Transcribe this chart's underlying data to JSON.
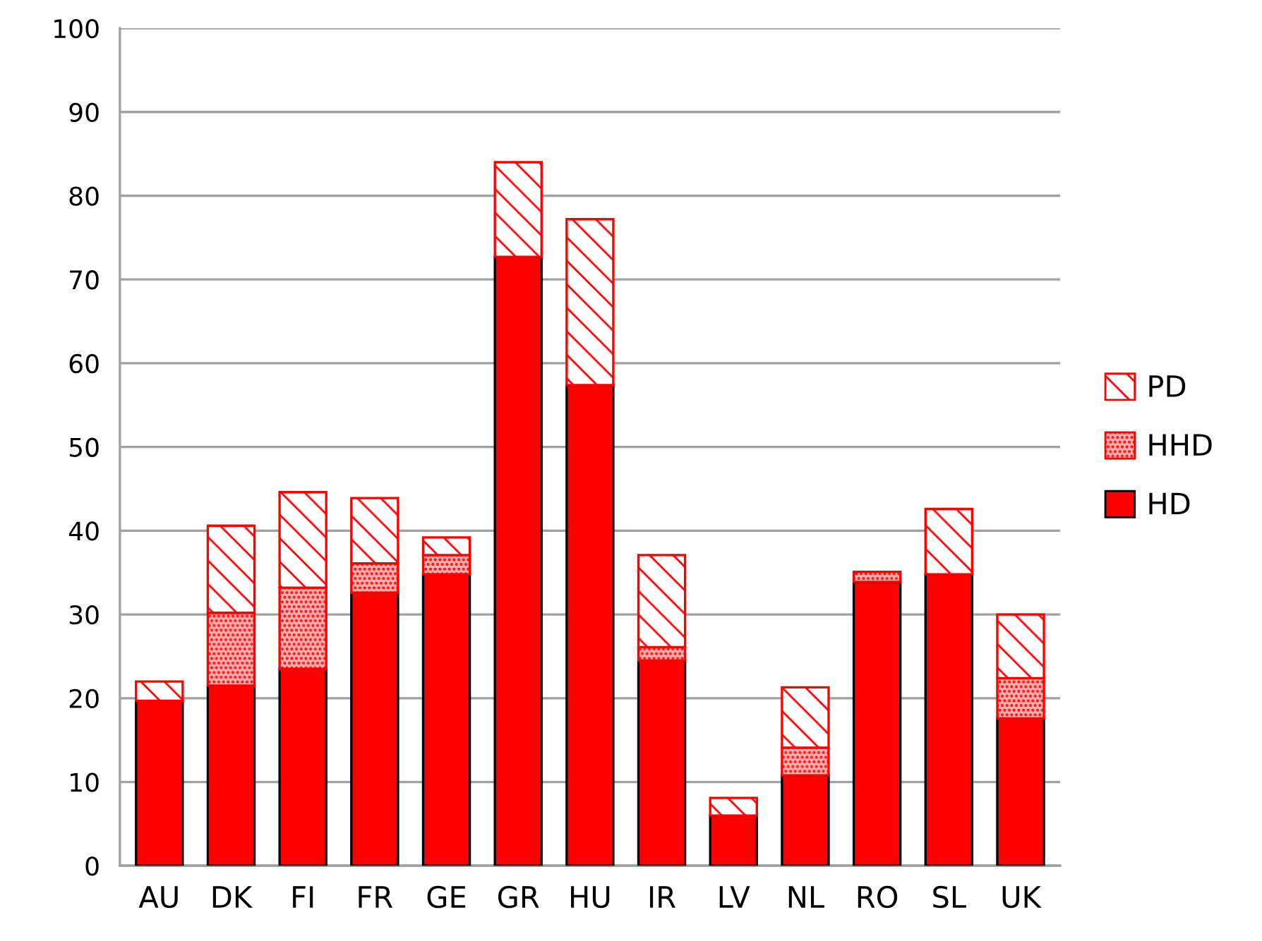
{
  "chart_data": {
    "type": "bar",
    "stacked": true,
    "categories": [
      "AU",
      "DK",
      "FI",
      "FR",
      "GE",
      "GR",
      "HU",
      "IR",
      "LV",
      "NL",
      "RO",
      "SL",
      "UK"
    ],
    "series": [
      {
        "name": "HD",
        "color": "#ff0000",
        "values": [
          19.7,
          21.5,
          23.5,
          32.6,
          34.8,
          72.7,
          57.4,
          24.5,
          6.0,
          10.8,
          33.9,
          34.8,
          17.6
        ]
      },
      {
        "name": "HHD",
        "color": "#ff0000",
        "values": [
          null,
          8.7,
          9.7,
          3.5,
          2.3,
          null,
          null,
          1.6,
          null,
          3.3,
          1.2,
          null,
          4.8
        ]
      },
      {
        "name": "PD",
        "color": "#ff0000",
        "values": [
          2.3,
          10.4,
          11.4,
          7.8,
          2.1,
          11.3,
          19.8,
          11.0,
          2.1,
          7.2,
          null,
          7.8,
          7.6
        ]
      }
    ],
    "ylim": [
      0,
      100
    ],
    "yticks": [
      0,
      10,
      20,
      30,
      40,
      50,
      60,
      70,
      80,
      90,
      100
    ],
    "grid": "y",
    "legend": "right"
  }
}
